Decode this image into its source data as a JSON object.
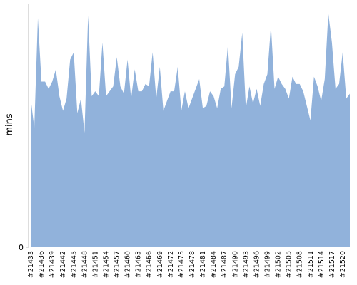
{
  "chart_data": {
    "type": "area",
    "y_label": "mins",
    "color": "#91b2db",
    "categories": [
      "#21433",
      null,
      null,
      "#21436",
      null,
      null,
      "#21439",
      null,
      null,
      "#21442",
      null,
      null,
      "#21445",
      null,
      null,
      "#21448",
      null,
      null,
      "#21451",
      null,
      null,
      "#21454",
      null,
      null,
      "#21457",
      null,
      null,
      "#21460",
      null,
      null,
      "#21463",
      null,
      null,
      "#21466",
      null,
      null,
      "#21469",
      null,
      null,
      "#21472",
      null,
      null,
      "#21475",
      null,
      null,
      "#21478",
      null,
      null,
      "#21481",
      null,
      null,
      "#21484",
      null,
      null,
      "#21487",
      null,
      null,
      "#21490",
      null,
      null,
      "#21493",
      null,
      null,
      "#21496",
      null,
      null,
      "#21499",
      null,
      null,
      "#21502",
      null,
      null,
      "#21505",
      null,
      null,
      "#21508",
      null,
      null,
      "#21511",
      null,
      null,
      "#21514",
      null,
      null,
      "#21517",
      null,
      null,
      "#21520",
      null,
      null
    ],
    "values": [
      61,
      49,
      94,
      68,
      68,
      65,
      68,
      73,
      62,
      56,
      61,
      77,
      80,
      55,
      61,
      47,
      95,
      62,
      64,
      62,
      84,
      62,
      64,
      66,
      78,
      66,
      63,
      77,
      61,
      73,
      64,
      64,
      67,
      66,
      80,
      61,
      74,
      56,
      60,
      64,
      64,
      74,
      56,
      64,
      57,
      61,
      65,
      69,
      57,
      58,
      64,
      62,
      57,
      65,
      66,
      83,
      57,
      71,
      74,
      88,
      57,
      66,
      59,
      65,
      58,
      67,
      71,
      91,
      65,
      70,
      67,
      65,
      61,
      70,
      67,
      67,
      64,
      58,
      52,
      70,
      66,
      60,
      69,
      96,
      84,
      65,
      67,
      80,
      61,
      63
    ],
    "ylim": [
      0,
      100
    ],
    "yticks": [
      0
    ]
  }
}
